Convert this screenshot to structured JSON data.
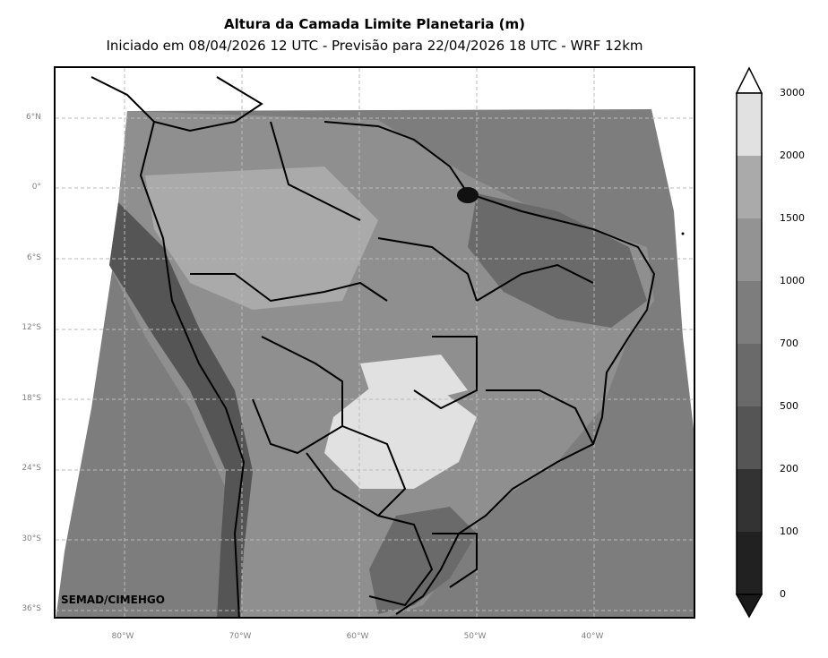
{
  "title": "Altura da Camada Limite Planetaria (m)",
  "subtitle": "Iniciado em 08/04/2026 12 UTC - Previsão para 22/04/2026 18 UTC - WRF 12km",
  "credit": "SEMAD/CIMEHGO",
  "lat_labels": [
    "6°N",
    "0°",
    "6°S",
    "12°S",
    "18°S",
    "24°S",
    "30°S",
    "36°S"
  ],
  "lon_labels": [
    "80°W",
    "70°W",
    "60°W",
    "50°W",
    "40°W"
  ],
  "colorbar": {
    "labels": [
      "3000",
      "2000",
      "1500",
      "1000",
      "700",
      "500",
      "200",
      "100",
      "0"
    ],
    "colors": [
      "#ffffff",
      "#e1e1e1",
      "#aaaaaa",
      "#939393",
      "#7d7d7d",
      "#6a6a6a",
      "#555555",
      "#333333",
      "#212121",
      "#1a1a1a"
    ]
  },
  "map_colors": {
    "light": "#e1e1e1",
    "mid": "#aaaaaa",
    "mid2": "#939393",
    "dark": "#6a6a6a",
    "darker": "#555555",
    "ocean": "#7d7d7d"
  }
}
